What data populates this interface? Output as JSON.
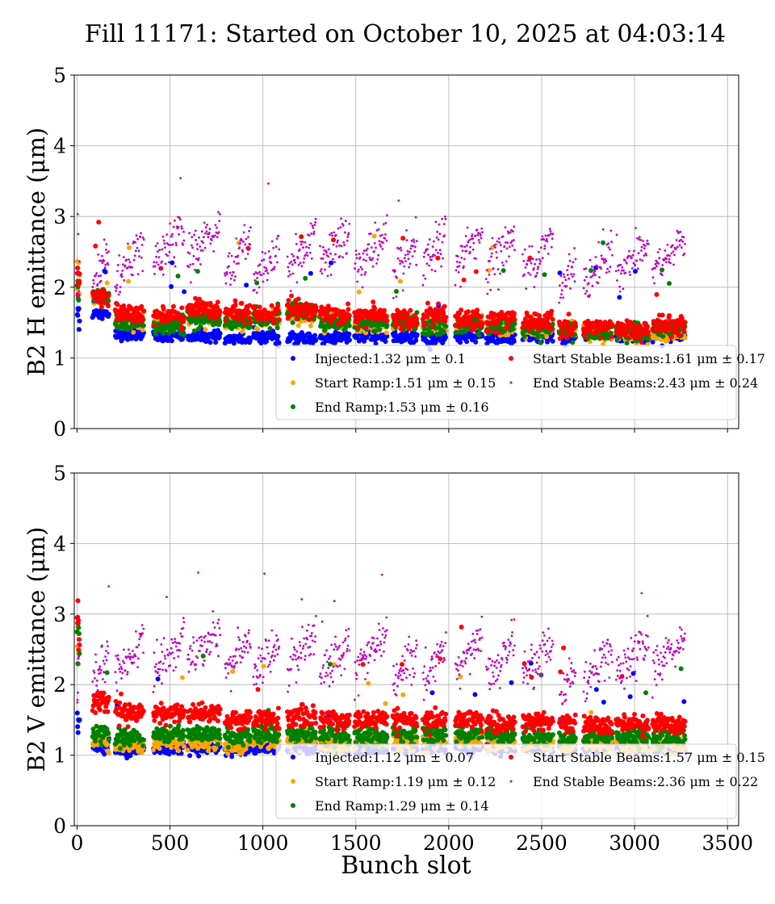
{
  "chart_data": {
    "type": "scatter",
    "title": "Fill 11171: Started on October 10, 2025 at 04:03:14",
    "xlabel": "Bunch slot",
    "xlim": [
      -15,
      3560
    ],
    "xticks": [
      0,
      500,
      1000,
      1500,
      2000,
      2500,
      3000,
      3500
    ],
    "grid": true,
    "legend_placement": "lower-right",
    "series_colors": {
      "Injected": "#0000ff",
      "Start Ramp": "#ffa500",
      "End Ramp": "#008000",
      "Start Stable Beams": "#ff0000",
      "End Stable Beams": "#bf00bf"
    },
    "trains": [
      [
        0,
        12
      ],
      [
        83,
        170
      ],
      [
        205,
        358
      ],
      [
        410,
        576
      ],
      [
        594,
        769
      ],
      [
        795,
        934
      ],
      [
        948,
        1087
      ],
      [
        1131,
        1284
      ],
      [
        1306,
        1467
      ],
      [
        1493,
        1668
      ],
      [
        1699,
        1830
      ],
      [
        1860,
        1983
      ],
      [
        2035,
        2179
      ],
      [
        2201,
        2354
      ],
      [
        2397,
        2559
      ],
      [
        2594,
        2681
      ],
      [
        2725,
        2878
      ],
      [
        2900,
        3074
      ],
      [
        3096,
        3271
      ]
    ],
    "panels": [
      {
        "ylabel": "B2 H emittance (μm)",
        "ylim": [
          0,
          5
        ],
        "yticks": [
          0,
          1,
          2,
          3,
          4,
          5
        ],
        "series": [
          {
            "name": "Injected",
            "legend": "Injected:1.32 μm ± 0.1",
            "train_means": [
              1.65,
              1.62,
              1.32,
              1.3,
              1.3,
              1.27,
              1.3,
              1.27,
              1.28,
              1.3,
              1.3,
              1.28,
              1.3,
              1.28,
              1.3,
              1.28,
              1.3,
              1.3,
              1.3
            ]
          },
          {
            "name": "Start Ramp",
            "legend": "Start Ramp:1.51 μm ± 0.15",
            "train_means": [
              2.2,
              1.85,
              1.5,
              1.5,
              1.6,
              1.5,
              1.55,
              1.6,
              1.5,
              1.5,
              1.5,
              1.45,
              1.45,
              1.45,
              1.4,
              1.4,
              1.35,
              1.35,
              1.35
            ]
          },
          {
            "name": "End Ramp",
            "legend": "End Ramp:1.53 μm ± 0.16",
            "train_means": [
              1.9,
              1.9,
              1.5,
              1.45,
              1.55,
              1.5,
              1.55,
              1.65,
              1.5,
              1.5,
              1.5,
              1.45,
              1.45,
              1.45,
              1.4,
              1.4,
              1.35,
              1.35,
              1.4
            ]
          },
          {
            "name": "Start Stable Beams",
            "legend": "Start Stable Beams:1.61 μm ± 0.17",
            "train_means": [
              2.1,
              1.85,
              1.65,
              1.6,
              1.7,
              1.65,
              1.65,
              1.7,
              1.6,
              1.6,
              1.55,
              1.6,
              1.55,
              1.55,
              1.5,
              1.45,
              1.45,
              1.4,
              1.45
            ]
          },
          {
            "name": "End Stable Beams",
            "legend": "End Stable Beams:2.43 μm ± 0.24",
            "train_means": [
              2.4,
              2.3,
              2.35,
              2.6,
              2.65,
              2.45,
              2.3,
              2.5,
              2.55,
              2.5,
              2.35,
              2.5,
              2.55,
              2.5,
              2.45,
              2.15,
              2.3,
              2.4,
              2.45
            ]
          }
        ]
      },
      {
        "ylabel": "B2 V emittance (μm)",
        "ylim": [
          0,
          5
        ],
        "yticks": [
          0,
          1,
          2,
          3,
          4,
          5
        ],
        "series": [
          {
            "name": "Injected",
            "legend": "Injected:1.12 μm ± 0.07",
            "train_means": [
              1.5,
              1.12,
              1.08,
              1.1,
              1.1,
              1.08,
              1.1,
              1.1,
              1.1,
              1.1,
              1.1,
              1.1,
              1.1,
              1.1,
              1.1,
              1.1,
              1.1,
              1.1,
              1.1
            ]
          },
          {
            "name": "Start Ramp",
            "legend": "Start Ramp:1.19 μm ± 0.12",
            "train_means": [
              2.5,
              1.2,
              1.15,
              1.2,
              1.2,
              1.15,
              1.2,
              1.2,
              1.15,
              1.2,
              1.2,
              1.2,
              1.2,
              1.2,
              1.15,
              1.15,
              1.15,
              1.15,
              1.15
            ]
          },
          {
            "name": "End Ramp",
            "legend": "End Ramp:1.29 μm ± 0.14",
            "train_means": [
              2.7,
              1.3,
              1.25,
              1.3,
              1.3,
              1.25,
              1.3,
              1.3,
              1.25,
              1.25,
              1.3,
              1.3,
              1.3,
              1.3,
              1.25,
              1.25,
              1.25,
              1.25,
              1.25
            ]
          },
          {
            "name": "Start Stable Beams",
            "legend": "Start Stable Beams:1.57 μm ± 0.15",
            "train_means": [
              2.8,
              1.75,
              1.6,
              1.6,
              1.6,
              1.5,
              1.5,
              1.55,
              1.5,
              1.5,
              1.5,
              1.5,
              1.5,
              1.45,
              1.45,
              1.45,
              1.45,
              1.45,
              1.45
            ]
          },
          {
            "name": "End Stable Beams",
            "legend": "End Stable Beams:2.36 μm ± 0.22",
            "train_means": [
              2.2,
              2.25,
              2.45,
              2.45,
              2.55,
              2.4,
              2.4,
              2.45,
              2.4,
              2.45,
              2.25,
              2.35,
              2.45,
              2.35,
              2.35,
              2.05,
              2.25,
              2.4,
              2.45
            ]
          }
        ]
      }
    ]
  }
}
